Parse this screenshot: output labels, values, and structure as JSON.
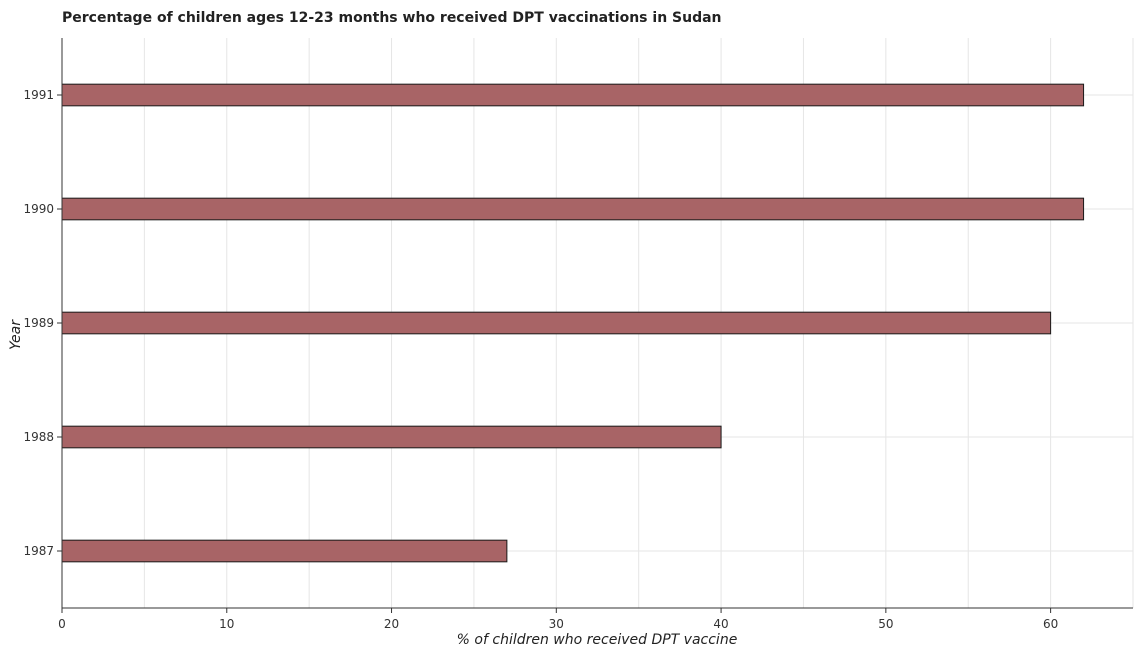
{
  "chart_data": {
    "type": "bar",
    "orientation": "horizontal",
    "title": "Percentage of children ages 12-23 months who received DPT vaccinations in Sudan",
    "xlabel": "% of children who received DPT vaccine",
    "ylabel": "Year",
    "categories": [
      "1987",
      "1988",
      "1989",
      "1990",
      "1991"
    ],
    "values": [
      27,
      40,
      60,
      62,
      62
    ],
    "xlim": [
      0,
      65
    ],
    "xticks": [
      0,
      10,
      20,
      30,
      40,
      50,
      60
    ],
    "grid": true,
    "bar_color": "#a86466",
    "bar_edge_color": "#1a1a1a"
  }
}
